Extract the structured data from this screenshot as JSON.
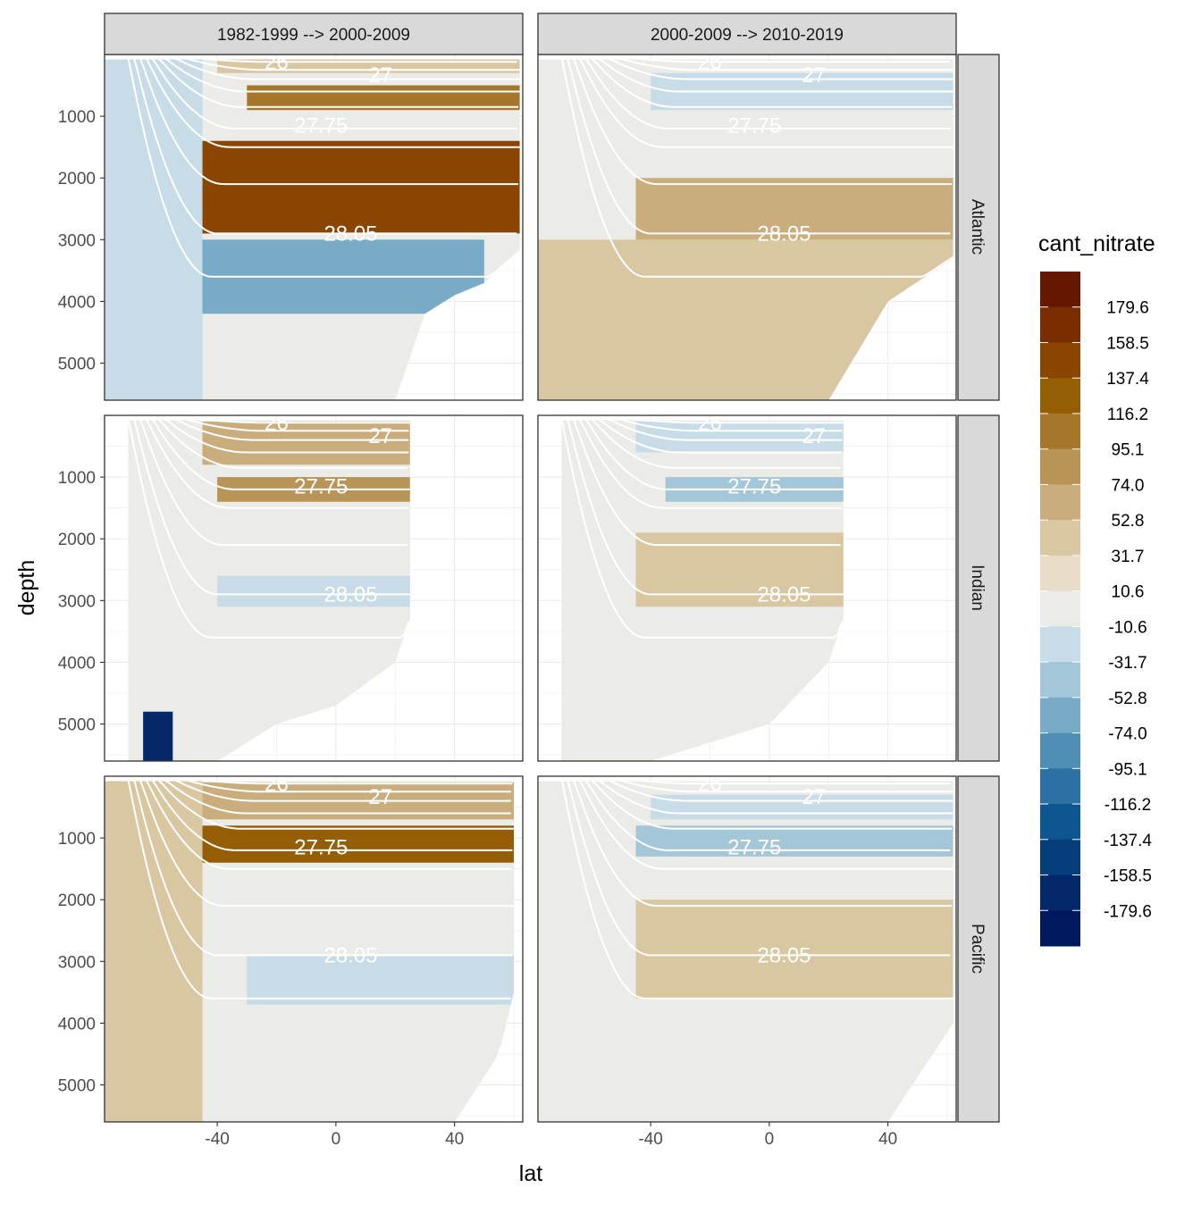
{
  "chart_data": {
    "type": "heatmap",
    "subtype": "faceted filled-contour depth sections",
    "xlabel": "lat",
    "ylabel": "depth",
    "x_ticks": [
      -40,
      0,
      40
    ],
    "y_ticks": [
      1000,
      2000,
      3000,
      4000,
      5000
    ],
    "xlim": [
      -78,
      63
    ],
    "ylim": [
      5600,
      0
    ],
    "y_reversed": true,
    "grid": true,
    "legend_position": "right",
    "column_facets": [
      "1982-1999 --> 2000-2009",
      "2000-2009 --> 2010-2019"
    ],
    "row_facets": [
      "Atlantic",
      "Indian",
      "Pacific"
    ],
    "legend": {
      "title": "cant_nitrate",
      "labels": [
        "179.6",
        "158.5",
        "137.4",
        "116.2",
        "95.1",
        "74.0",
        "52.8",
        "31.7",
        "10.6",
        "-10.6",
        "-31.7",
        "-52.8",
        "-74.0",
        "-95.1",
        "-116.2",
        "-137.4",
        "-158.5",
        "-179.6"
      ],
      "bin_colors": [
        "#661700",
        "#7a2e00",
        "#8a4500",
        "#955e05",
        "#a6772a",
        "#b89457",
        "#c9ad7c",
        "#d9c7a1",
        "#e9ddc8",
        "#ebebe8",
        "#c8dce8",
        "#a3c6d8",
        "#78acc6",
        "#4f8fb5",
        "#2b71a3",
        "#0d568f",
        "#063e7c",
        "#03296b",
        "#00185c"
      ]
    },
    "isopycnal_labels": [
      "26",
      "27",
      "27.75",
      "28.05"
    ],
    "isopycnal_values": [
      26,
      26.5,
      27,
      27.25,
      27.5,
      27.75,
      27.85,
      27.95,
      28.05,
      28.1
    ],
    "panels": [
      {
        "row": "Atlantic",
        "column": "1982-1999 --> 2000-2009",
        "lat_extent": [
          -78,
          62
        ],
        "max_depth": [
          [
            -78,
            5600
          ],
          [
            -58,
            5600
          ],
          [
            -30,
            5600
          ],
          [
            0,
            5600
          ],
          [
            20,
            5600
          ],
          [
            30,
            4200
          ],
          [
            40,
            3900
          ],
          [
            50,
            3700
          ],
          [
            62,
            3200
          ]
        ],
        "regions": [
          {
            "depth_range": [
              0,
              300
            ],
            "lat_range": [
              -40,
              62
            ],
            "cant_nitrate": 31.7
          },
          {
            "depth_range": [
              500,
              900
            ],
            "lat_range": [
              -30,
              62
            ],
            "cant_nitrate": 95.1
          },
          {
            "depth_range": [
              1400,
              2900
            ],
            "lat_range": [
              -45,
              62
            ],
            "cant_nitrate": 137.4
          },
          {
            "depth_range": [
              3000,
              4200
            ],
            "lat_range": [
              -50,
              50
            ],
            "cant_nitrate": -74.0
          },
          {
            "depth_range": [
              0,
              5600
            ],
            "lat_range": [
              -78,
              -45
            ],
            "cant_nitrate": -31.7
          }
        ]
      },
      {
        "row": "Atlantic",
        "column": "2000-2009 --> 2010-2019",
        "lat_extent": [
          -78,
          62
        ],
        "max_depth": [
          [
            -78,
            5600
          ],
          [
            -58,
            5600
          ],
          [
            0,
            5600
          ],
          [
            20,
            5600
          ],
          [
            40,
            4000
          ],
          [
            62,
            3300
          ]
        ],
        "regions": [
          {
            "depth_range": [
              300,
              900
            ],
            "lat_range": [
              -40,
              62
            ],
            "cant_nitrate": -31.7
          },
          {
            "depth_range": [
              2000,
              3000
            ],
            "lat_range": [
              -45,
              62
            ],
            "cant_nitrate": 52.8
          },
          {
            "depth_range": [
              3000,
              5600
            ],
            "lat_range": [
              -78,
              62
            ],
            "cant_nitrate": 31.7
          }
        ]
      },
      {
        "row": "Indian",
        "column": "1982-1999 --> 2000-2009",
        "lat_extent": [
          -70,
          25
        ],
        "max_depth": [
          [
            -70,
            5600
          ],
          [
            -40,
            5600
          ],
          [
            -20,
            5000
          ],
          [
            0,
            4700
          ],
          [
            20,
            4000
          ],
          [
            25,
            3300
          ]
        ],
        "regions": [
          {
            "depth_range": [
              100,
              800
            ],
            "lat_range": [
              -45,
              25
            ],
            "cant_nitrate": 52.8
          },
          {
            "depth_range": [
              1000,
              1400
            ],
            "lat_range": [
              -40,
              25
            ],
            "cant_nitrate": 74.0
          },
          {
            "depth_range": [
              2600,
              3100
            ],
            "lat_range": [
              -40,
              25
            ],
            "cant_nitrate": -31.7
          },
          {
            "depth_range": [
              4800,
              5600
            ],
            "lat_range": [
              -65,
              -55
            ],
            "cant_nitrate": -179.6
          }
        ]
      },
      {
        "row": "Indian",
        "column": "2000-2009 --> 2010-2019",
        "lat_extent": [
          -70,
          25
        ],
        "max_depth": [
          [
            -70,
            5600
          ],
          [
            -40,
            5600
          ],
          [
            0,
            5000
          ],
          [
            20,
            4000
          ],
          [
            25,
            3300
          ]
        ],
        "regions": [
          {
            "depth_range": [
              100,
              600
            ],
            "lat_range": [
              -45,
              25
            ],
            "cant_nitrate": -31.7
          },
          {
            "depth_range": [
              1000,
              1400
            ],
            "lat_range": [
              -35,
              25
            ],
            "cant_nitrate": -52.8
          },
          {
            "depth_range": [
              1900,
              3100
            ],
            "lat_range": [
              -45,
              25
            ],
            "cant_nitrate": 31.7
          }
        ]
      },
      {
        "row": "Pacific",
        "column": "1982-1999 --> 2000-2009",
        "lat_extent": [
          -78,
          60
        ],
        "max_depth": [
          [
            -78,
            5600
          ],
          [
            -40,
            5600
          ],
          [
            0,
            5600
          ],
          [
            40,
            5600
          ],
          [
            55,
            4500
          ],
          [
            60,
            3500
          ]
        ],
        "regions": [
          {
            "depth_range": [
              100,
              700
            ],
            "lat_range": [
              -45,
              60
            ],
            "cant_nitrate": 52.8
          },
          {
            "depth_range": [
              800,
              1400
            ],
            "lat_range": [
              -45,
              60
            ],
            "cant_nitrate": 116.2
          },
          {
            "depth_range": [
              2900,
              3700
            ],
            "lat_range": [
              -30,
              60
            ],
            "cant_nitrate": -31.7
          },
          {
            "depth_range": [
              0,
              5600
            ],
            "lat_range": [
              -78,
              -45
            ],
            "cant_nitrate": 31.7
          }
        ]
      },
      {
        "row": "Pacific",
        "column": "2000-2009 --> 2010-2019",
        "lat_extent": [
          -78,
          62
        ],
        "max_depth": [
          [
            -78,
            5600
          ],
          [
            -40,
            5600
          ],
          [
            0,
            5600
          ],
          [
            40,
            5600
          ],
          [
            62,
            4000
          ]
        ],
        "regions": [
          {
            "depth_range": [
              300,
              700
            ],
            "lat_range": [
              -40,
              62
            ],
            "cant_nitrate": -31.7
          },
          {
            "depth_range": [
              800,
              1300
            ],
            "lat_range": [
              -45,
              62
            ],
            "cant_nitrate": -52.8
          },
          {
            "depth_range": [
              2000,
              3600
            ],
            "lat_range": [
              -45,
              62
            ],
            "cant_nitrate": 31.7
          }
        ]
      }
    ]
  }
}
